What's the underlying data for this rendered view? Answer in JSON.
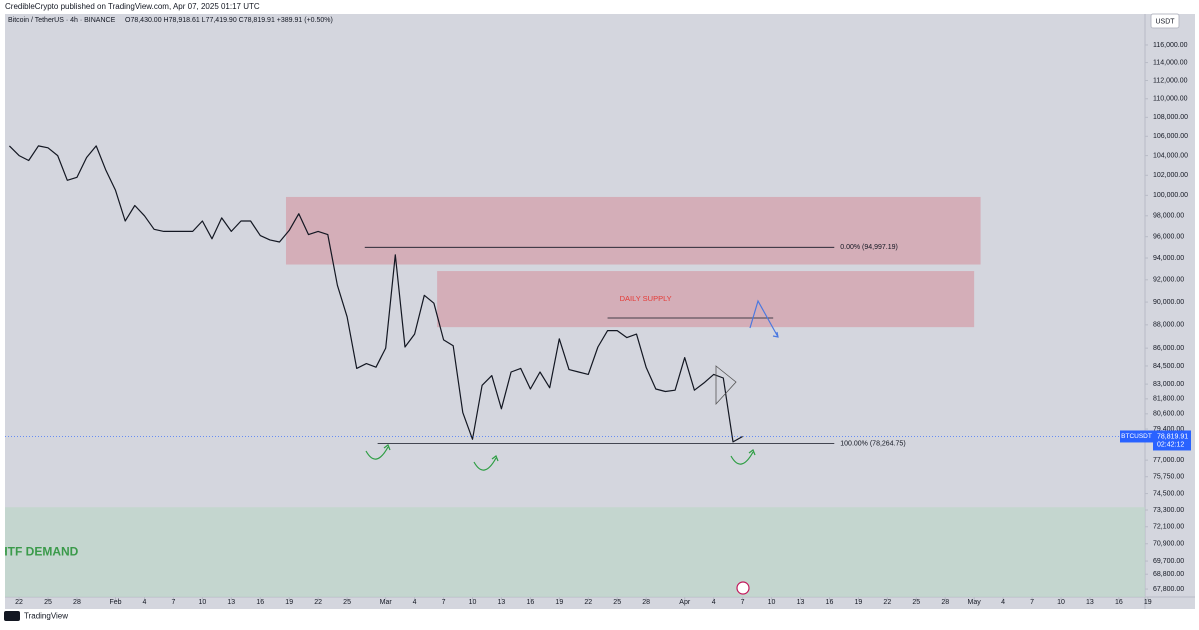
{
  "header": {
    "publisher": "CredibleCrypto published on TradingView.com, Apr 07, 2025 01:17 UTC",
    "footer": "TradingView"
  },
  "chart_data": {
    "type": "line",
    "title": "Bitcoin / TetherUS · 4h · BINANCE",
    "ohlc": "O78,430.00 H78,918.61 L77,419.90 C78,819.91 +389.91 (+0.50%)",
    "currency": "USDT",
    "log_scale": true,
    "x": [
      "2025-01-21",
      "2025-01-22",
      "2025-01-23",
      "2025-01-24",
      "2025-01-25",
      "2025-01-26",
      "2025-01-27",
      "2025-01-28",
      "2025-01-29",
      "2025-01-30",
      "2025-01-31",
      "2025-02-01",
      "2025-02-02",
      "2025-02-03",
      "2025-02-04",
      "2025-02-05",
      "2025-02-06",
      "2025-02-07",
      "2025-02-08",
      "2025-02-09",
      "2025-02-10",
      "2025-02-11",
      "2025-02-12",
      "2025-02-13",
      "2025-02-14",
      "2025-02-15",
      "2025-02-16",
      "2025-02-17",
      "2025-02-18",
      "2025-02-19",
      "2025-02-20",
      "2025-02-21",
      "2025-02-22",
      "2025-02-23",
      "2025-02-24",
      "2025-02-25",
      "2025-02-26",
      "2025-02-27",
      "2025-02-28",
      "2025-03-01",
      "2025-03-02",
      "2025-03-03",
      "2025-03-04",
      "2025-03-05",
      "2025-03-06",
      "2025-03-07",
      "2025-03-08",
      "2025-03-09",
      "2025-03-10",
      "2025-03-11",
      "2025-03-12",
      "2025-03-13",
      "2025-03-14",
      "2025-03-15",
      "2025-03-16",
      "2025-03-17",
      "2025-03-18",
      "2025-03-19",
      "2025-03-20",
      "2025-03-21",
      "2025-03-22",
      "2025-03-23",
      "2025-03-24",
      "2025-03-25",
      "2025-03-26",
      "2025-03-27",
      "2025-03-28",
      "2025-03-29",
      "2025-03-30",
      "2025-03-31",
      "2025-04-01",
      "2025-04-02",
      "2025-04-03",
      "2025-04-04",
      "2025-04-05",
      "2025-04-06",
      "2025-04-07"
    ],
    "series": [
      {
        "color": "#131722",
        "values": [
          105000,
          104000,
          103500,
          105000,
          104800,
          104000,
          101500,
          101800,
          103800,
          105000,
          102500,
          100500,
          97500,
          99000,
          98000,
          96700,
          96500,
          96500,
          96500,
          96500,
          97500,
          95800,
          97800,
          96500,
          97500,
          97500,
          96100,
          95700,
          95500,
          96600,
          98200,
          96200,
          96500,
          96200,
          91500,
          88700,
          84300,
          84700,
          84400,
          86000,
          94300,
          86100,
          87200,
          90600,
          89900,
          86700,
          86200,
          80700,
          78600,
          82900,
          83700,
          81000,
          84000,
          84300,
          82600,
          84000,
          82700,
          86800,
          84200,
          84000,
          83800,
          86100,
          87500,
          87500,
          86900,
          87200,
          84400,
          82600,
          82400,
          82500,
          85200,
          82500,
          83100,
          83800,
          83500,
          78400,
          78820
        ]
      }
    ],
    "xlim": [
      "2025-01-20T13:00Z",
      "2025-05-18T17:00Z"
    ],
    "ylim": [
      67270,
      119600
    ],
    "yticks": [
      {
        "value": 116000,
        "label": "116,000.00"
      },
      {
        "value": 114000,
        "label": "114,000.00"
      },
      {
        "value": 112000,
        "label": "112,000.00"
      },
      {
        "value": 110000,
        "label": "110,000.00"
      },
      {
        "value": 108000,
        "label": "108,000.00"
      },
      {
        "value": 106000,
        "label": "106,000.00"
      },
      {
        "value": 104000,
        "label": "104,000.00"
      },
      {
        "value": 102000,
        "label": "102,000.00"
      },
      {
        "value": 100000,
        "label": "100,000.00"
      },
      {
        "value": 98000,
        "label": "98,000.00"
      },
      {
        "value": 96000,
        "label": "96,000.00"
      },
      {
        "value": 94000,
        "label": "94,000.00"
      },
      {
        "value": 92000,
        "label": "92,000.00"
      },
      {
        "value": 90000,
        "label": "90,000.00"
      },
      {
        "value": 88000,
        "label": "88,000.00"
      },
      {
        "value": 86000,
        "label": "86,000.00"
      },
      {
        "value": 84500,
        "label": "84,500.00"
      },
      {
        "value": 83000,
        "label": "83,000.00"
      },
      {
        "value": 81800,
        "label": "81,800.00"
      },
      {
        "value": 80600,
        "label": "80,600.00"
      },
      {
        "value": 79400,
        "label": "79,400.00"
      },
      {
        "value": 77000,
        "label": "77,000.00"
      },
      {
        "value": 75750,
        "label": "75,750.00"
      },
      {
        "value": 74500,
        "label": "74,500.00"
      },
      {
        "value": 73300,
        "label": "73,300.00"
      },
      {
        "value": 72100,
        "label": "72,100.00"
      },
      {
        "value": 70900,
        "label": "70,900.00"
      },
      {
        "value": 69700,
        "label": "69,700.00"
      },
      {
        "value": 68800,
        "label": "68,800.00"
      },
      {
        "value": 67800,
        "label": "67,800.00"
      }
    ],
    "xticks": [
      {
        "value": "2025-01-22",
        "label": "22"
      },
      {
        "value": "2025-01-25",
        "label": "25"
      },
      {
        "value": "2025-01-28",
        "label": "28"
      },
      {
        "value": "2025-02-01",
        "label": "Feb"
      },
      {
        "value": "2025-02-04",
        "label": "4"
      },
      {
        "value": "2025-02-07",
        "label": "7"
      },
      {
        "value": "2025-02-10",
        "label": "10"
      },
      {
        "value": "2025-02-13",
        "label": "13"
      },
      {
        "value": "2025-02-16",
        "label": "16"
      },
      {
        "value": "2025-02-19",
        "label": "19"
      },
      {
        "value": "2025-02-22",
        "label": "22"
      },
      {
        "value": "2025-02-25",
        "label": "25"
      },
      {
        "value": "2025-03-01",
        "label": "Mar"
      },
      {
        "value": "2025-03-04",
        "label": "4"
      },
      {
        "value": "2025-03-07",
        "label": "7"
      },
      {
        "value": "2025-03-10",
        "label": "10"
      },
      {
        "value": "2025-03-13",
        "label": "13"
      },
      {
        "value": "2025-03-16",
        "label": "16"
      },
      {
        "value": "2025-03-19",
        "label": "19"
      },
      {
        "value": "2025-03-22",
        "label": "22"
      },
      {
        "value": "2025-03-25",
        "label": "25"
      },
      {
        "value": "2025-03-28",
        "label": "28"
      },
      {
        "value": "2025-04-01",
        "label": "Apr"
      },
      {
        "value": "2025-04-04",
        "label": "4"
      },
      {
        "value": "2025-04-07",
        "label": "7"
      },
      {
        "value": "2025-04-10",
        "label": "10"
      },
      {
        "value": "2025-04-13",
        "label": "13"
      },
      {
        "value": "2025-04-16",
        "label": "16"
      },
      {
        "value": "2025-04-19",
        "label": "19"
      },
      {
        "value": "2025-04-22",
        "label": "22"
      },
      {
        "value": "2025-04-25",
        "label": "25"
      },
      {
        "value": "2025-04-28",
        "label": "28"
      },
      {
        "value": "2025-05-01",
        "label": "May"
      },
      {
        "value": "2025-05-04",
        "label": "4"
      },
      {
        "value": "2025-05-07",
        "label": "7"
      },
      {
        "value": "2025-05-10",
        "label": "10"
      },
      {
        "value": "2025-05-13",
        "label": "13"
      },
      {
        "value": "2025-05-16",
        "label": "16"
      },
      {
        "value": "2025-05-19",
        "label": "19"
      }
    ],
    "zones": [
      {
        "from": "2025-02-18T16:00Z",
        "to": "2025-05-01T16:00Z",
        "low": 93400,
        "high": 99840,
        "color": "#d4a0ab"
      },
      {
        "name": "DAILY SUPPLY",
        "from": "2025-03-06T08:00Z",
        "to": "2025-05-01T00:00Z",
        "low": 87800,
        "high": 92800,
        "color": "#d4a0ab"
      },
      {
        "name": "HTF DEMAND",
        "from": "2025-01-20T13:00Z",
        "to": "2025-05-18T17:00Z",
        "low": 66000,
        "high": 73500,
        "color": "#bfd6c9"
      }
    ],
    "levels": [
      {
        "value": 94997.19,
        "label": "0.00% (94,997.19)",
        "from": "2025-02-26T20:00Z",
        "to": "2025-04-16T12:00Z"
      },
      {
        "value": 78264.75,
        "label": "100.00% (78,264.75)",
        "from": "2025-02-28T04:00Z",
        "to": "2025-04-16T12:00Z"
      }
    ],
    "lines": [
      {
        "value": 88600,
        "from": "2025-03-24T00:00Z",
        "to": "2025-04-10T04:00Z"
      }
    ],
    "last_price": {
      "symbol": "BTCUSDT",
      "value": 78819.91,
      "label": "78,819.91",
      "countdown": "02:42:12",
      "color": "#2962ff"
    }
  }
}
